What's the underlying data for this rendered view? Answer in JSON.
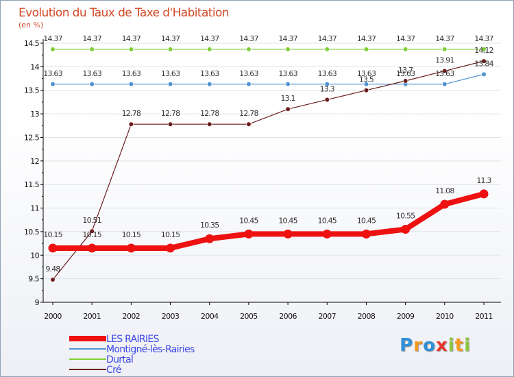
{
  "chart_data": {
    "type": "line",
    "title": "Evolution du Taux de Taxe d'Habitation",
    "ylabel": "(en %)",
    "xlabel": "",
    "categories": [
      "2000",
      "2001",
      "2002",
      "2003",
      "2004",
      "2005",
      "2006",
      "2007",
      "2008",
      "2009",
      "2010",
      "2011"
    ],
    "ylim": [
      9,
      14.5
    ],
    "yticks": [
      "9",
      "9.5",
      "10",
      "10.5",
      "11",
      "11.5",
      "12",
      "12.5",
      "13",
      "13.5",
      "14",
      "14.5"
    ],
    "grid": true,
    "legend_position": "bottom-left",
    "series": [
      {
        "name": "LES RAIRIES",
        "color": "#ee1111",
        "labels": [
          "10.15",
          "10.15",
          "10.15",
          "10.15",
          "10.35",
          "10.45",
          "10.45",
          "10.45",
          "10.45",
          "10.55",
          "11.08",
          "11.3"
        ],
        "values": [
          10.15,
          10.15,
          10.15,
          10.15,
          10.35,
          10.45,
          10.45,
          10.45,
          10.45,
          10.55,
          11.08,
          11.3
        ]
      },
      {
        "name": "Montigné-lès-Rairies",
        "color": "#4f93d3",
        "labels": [
          "13.63",
          "13.63",
          "13.63",
          "13.63",
          "13.63",
          "13.63",
          "13.63",
          "13.63",
          "13.63",
          "13.63",
          "13.63",
          "13.84"
        ],
        "values": [
          13.63,
          13.63,
          13.63,
          13.63,
          13.63,
          13.63,
          13.63,
          13.63,
          13.63,
          13.63,
          13.63,
          13.84
        ]
      },
      {
        "name": "Durtal",
        "color": "#7fce36",
        "labels": [
          "14.37",
          "14.37",
          "14.37",
          "14.37",
          "14.37",
          "14.37",
          "14.37",
          "14.37",
          "14.37",
          "14.37",
          "14.37",
          "14.37"
        ],
        "values": [
          14.37,
          14.37,
          14.37,
          14.37,
          14.37,
          14.37,
          14.37,
          14.37,
          14.37,
          14.37,
          14.37,
          14.37
        ]
      },
      {
        "name": "Cré",
        "color": "#6b1c1c",
        "labels": [
          "9.48",
          "10.51",
          "12.78",
          "12.78",
          "12.78",
          "12.78",
          "13.1",
          "13.3",
          "13.5",
          "13.7",
          "13.91",
          "14.12"
        ],
        "values": [
          9.48,
          10.51,
          12.78,
          12.78,
          12.78,
          12.78,
          13.1,
          13.3,
          13.5,
          13.7,
          13.91,
          14.12
        ]
      }
    ]
  },
  "branding": {
    "letters": [
      {
        "char": "P",
        "color": "#2f8fd8"
      },
      {
        "char": "r",
        "color": "#f59a1c"
      },
      {
        "char": "o",
        "color": "#2f8fd8"
      },
      {
        "char": "x",
        "color": "#e8362a"
      },
      {
        "char": "i",
        "color": "#8cc63e"
      },
      {
        "char": "t",
        "color": "#f59a1c"
      },
      {
        "char": "i",
        "color": "#8cc63e"
      }
    ]
  }
}
